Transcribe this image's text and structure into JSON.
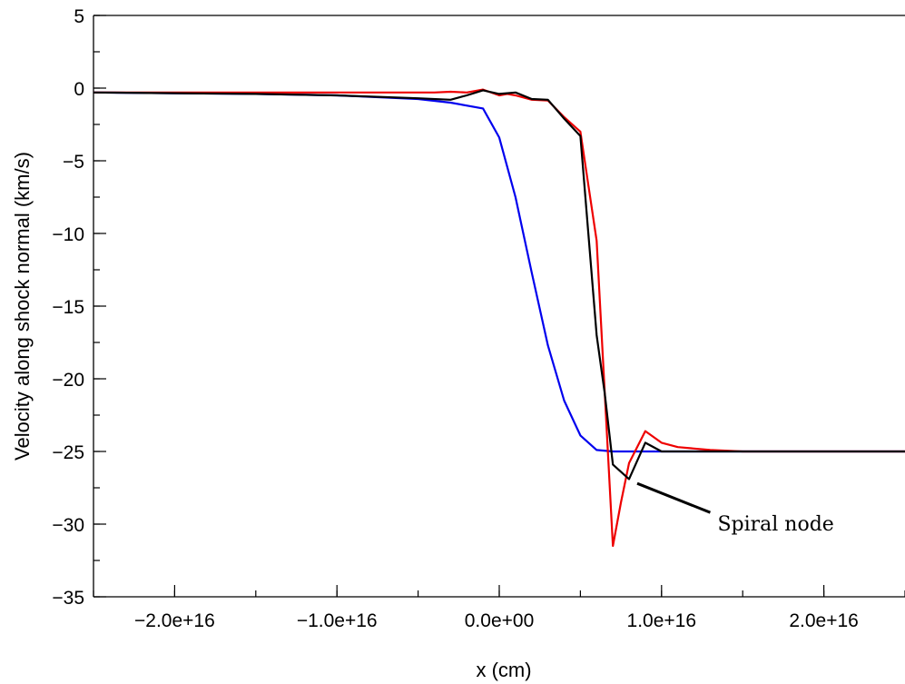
{
  "chart_data": {
    "type": "line",
    "title": "",
    "xlabel": "x (cm)",
    "ylabel": "Velocity along shock normal (km/s)",
    "xlim": [
      -2.5e+16,
      2.5e+16
    ],
    "ylim": [
      -35,
      5
    ],
    "x_ticks": [
      {
        "value": -2e+16,
        "label": "−2.0e+16"
      },
      {
        "value": -1e+16,
        "label": "−1.0e+16"
      },
      {
        "value": 0,
        "label": "0.0e+00"
      },
      {
        "value": 1e+16,
        "label": "1.0e+16"
      },
      {
        "value": 2e+16,
        "label": "2.0e+16"
      }
    ],
    "y_ticks": [
      {
        "value": 5,
        "label": "5"
      },
      {
        "value": 0,
        "label": "0"
      },
      {
        "value": -5,
        "label": "−5"
      },
      {
        "value": -10,
        "label": "−10"
      },
      {
        "value": -15,
        "label": "−15"
      },
      {
        "value": -20,
        "label": "−20"
      },
      {
        "value": -25,
        "label": "−25"
      },
      {
        "value": -30,
        "label": "−30"
      },
      {
        "value": -35,
        "label": "−35"
      }
    ],
    "x_minor_step": 5000000000000000.0,
    "y_minor_step": 2.5,
    "grid": false,
    "series": [
      {
        "color": "#0000ee",
        "x": [
          -2.5e+16,
          -2e+16,
          -1.5e+16,
          -1e+16,
          -5000000000000000.0,
          -3000000000000000.0,
          -1000000000000000.0,
          0.0,
          1000000000000000.0,
          2000000000000000.0,
          3000000000000000.0,
          4000000000000000.0,
          5000000000000000.0,
          6000000000000000.0,
          7000000000000000.0,
          8000000000000000.0,
          1e+16,
          1.5e+16,
          2e+16,
          2.5e+16
        ],
        "y": [
          -0.3,
          -0.35,
          -0.4,
          -0.5,
          -0.75,
          -1.0,
          -1.4,
          -3.4,
          -7.5,
          -12.7,
          -17.7,
          -21.5,
          -23.9,
          -24.9,
          -25.0,
          -25.0,
          -25.0,
          -25.0,
          -25.0,
          -25.0
        ]
      },
      {
        "color": "#ee0000",
        "x": [
          -2.5e+16,
          -2e+16,
          -1.5e+16,
          -1e+16,
          -5000000000000000.0,
          -4000000000000000.0,
          -3000000000000000.0,
          -2000000000000000.0,
          -1500000000000000.0,
          -1000000000000000.0,
          0.0,
          500000000000000.0,
          1000000000000000.0,
          2000000000000000.0,
          3000000000000000.0,
          4000000000000000.0,
          5000000000000000.0,
          6000000000000000.0,
          7000000000000000.0,
          7500000000000000.0,
          8000000000000000.0,
          9000000000000000.0,
          1e+16,
          1.1e+16,
          1.3e+16,
          1.5e+16,
          2e+16,
          2.5e+16
        ],
        "y": [
          -0.3,
          -0.3,
          -0.3,
          -0.3,
          -0.3,
          -0.3,
          -0.25,
          -0.3,
          -0.2,
          -0.1,
          -0.5,
          -0.4,
          -0.5,
          -0.8,
          -0.85,
          -2.0,
          -3.0,
          -10.5,
          -31.5,
          -28.5,
          -25.8,
          -23.6,
          -24.4,
          -24.7,
          -24.9,
          -25.0,
          -25.0,
          -25.0
        ]
      },
      {
        "color": "#000000",
        "x": [
          -2.5e+16,
          -2e+16,
          -1.5e+16,
          -1e+16,
          -5000000000000000.0,
          -3000000000000000.0,
          -2000000000000000.0,
          -1000000000000000.0,
          0.0,
          1000000000000000.0,
          2000000000000000.0,
          3000000000000000.0,
          4000000000000000.0,
          5000000000000000.0,
          6000000000000000.0,
          6500000000000000.0,
          7000000000000000.0,
          8000000000000000.0,
          9000000000000000.0,
          1e+16,
          1.1e+16,
          1.5e+16,
          2e+16,
          2.5e+16
        ],
        "y": [
          -0.3,
          -0.35,
          -0.4,
          -0.5,
          -0.7,
          -0.8,
          -0.5,
          -0.15,
          -0.4,
          -0.3,
          -0.75,
          -0.8,
          -2.1,
          -3.3,
          -17.0,
          -21.0,
          -25.9,
          -26.9,
          -24.4,
          -25.0,
          -25.0,
          -25.0,
          -25.0,
          -25.0
        ]
      }
    ],
    "annotations": [
      {
        "text": "Spiral node",
        "arrow_from": [
          1.3e+16,
          -29.2
        ],
        "arrow_to": [
          8500000000000000.0,
          -27.2
        ]
      }
    ]
  }
}
